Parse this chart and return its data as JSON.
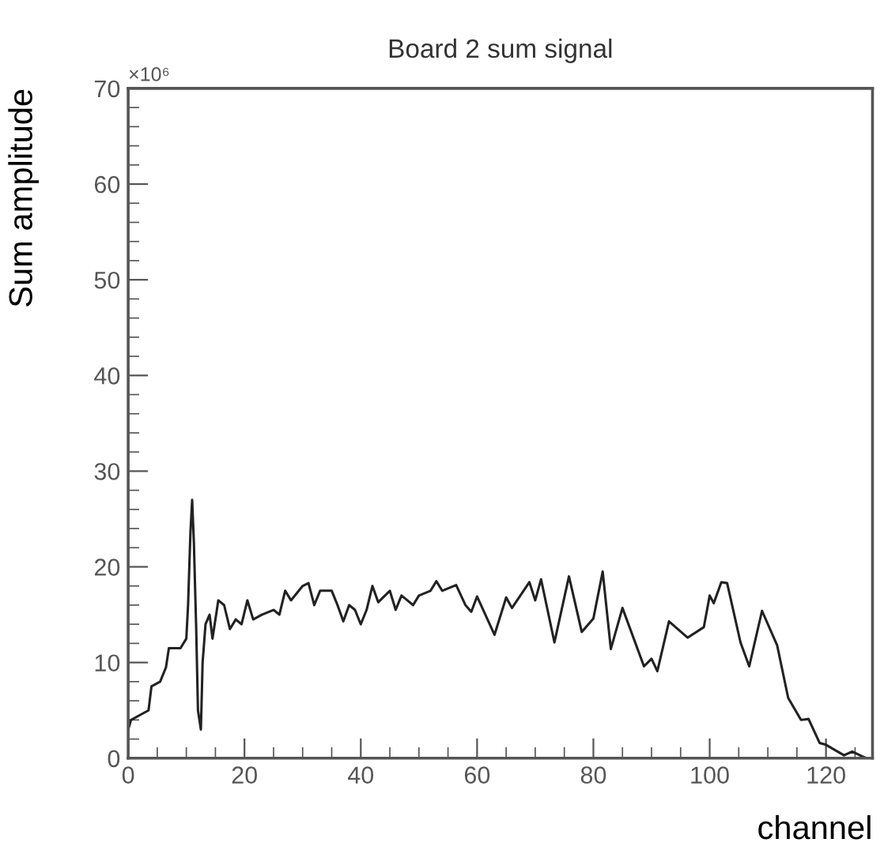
{
  "chart_data": {
    "type": "line",
    "title": "Board 2 sum signal",
    "xlabel": "channel",
    "ylabel": "Sum amplitude",
    "annotations": [
      "×10⁶"
    ],
    "xlim": [
      0,
      128
    ],
    "ylim": [
      0,
      70
    ],
    "xticks": [
      0,
      20,
      40,
      60,
      80,
      100,
      120
    ],
    "yticks": [
      0,
      10,
      20,
      30,
      40,
      50,
      60,
      70
    ],
    "grid": false,
    "legend": false,
    "marker": "none",
    "line_style": "solid",
    "series": [
      {
        "color": "#222222",
        "x": [
          0,
          0.5,
          2,
          3.5,
          4,
          5.5,
          6.5,
          7,
          9,
          10,
          10.3,
          10.7,
          11,
          11.3,
          11.7,
          12,
          12.5,
          12.8,
          13.3,
          14,
          14.5,
          15.5,
          16.5,
          17.5,
          18.5,
          19.5,
          20.5,
          21.5,
          23,
          25,
          26,
          27,
          28,
          30,
          31,
          32,
          33,
          35,
          36,
          37,
          38,
          39,
          40,
          41,
          42,
          43,
          45,
          46,
          47,
          48,
          49,
          50,
          52,
          53,
          54,
          56.4,
          58,
          59,
          60,
          63,
          65,
          66,
          69,
          70,
          71,
          73.3,
          75.8,
          78,
          80,
          81.6,
          83,
          85,
          88.7,
          90,
          91,
          93,
          96.2,
          99,
          100,
          100.7,
          102,
          103,
          105.3,
          106.8,
          109,
          111.6,
          113.5,
          115.7,
          117,
          118.9,
          120,
          123.1,
          124.5,
          126.2,
          127
        ],
        "values": [
          3,
          4,
          4.5,
          5,
          7.5,
          8,
          9.5,
          11.5,
          11.5,
          12.5,
          16,
          23.5,
          27,
          22.5,
          13.5,
          5,
          3,
          10,
          14,
          15,
          12.5,
          16.5,
          16,
          13.5,
          14.5,
          14,
          16.5,
          14.5,
          15,
          15.5,
          15,
          17.5,
          16.5,
          18,
          18.3,
          16,
          17.5,
          17.5,
          16,
          14.3,
          16,
          15.5,
          14,
          15.5,
          18,
          16.3,
          17.5,
          15.5,
          17,
          16.5,
          16,
          17,
          17.5,
          18.5,
          17.5,
          18.1,
          16,
          15.3,
          16.9,
          12.9,
          16.8,
          15.7,
          18.4,
          16.5,
          18.7,
          12.1,
          19,
          13.2,
          14.6,
          19.5,
          11.4,
          15.7,
          9.6,
          10.4,
          9.1,
          14.3,
          12.6,
          13.7,
          17,
          16.2,
          18.4,
          18.3,
          12.1,
          9.6,
          15.4,
          11.8,
          6.3,
          4,
          4.1,
          1.6,
          1.4,
          0.3,
          0.7,
          0.2,
          0
        ]
      }
    ]
  }
}
